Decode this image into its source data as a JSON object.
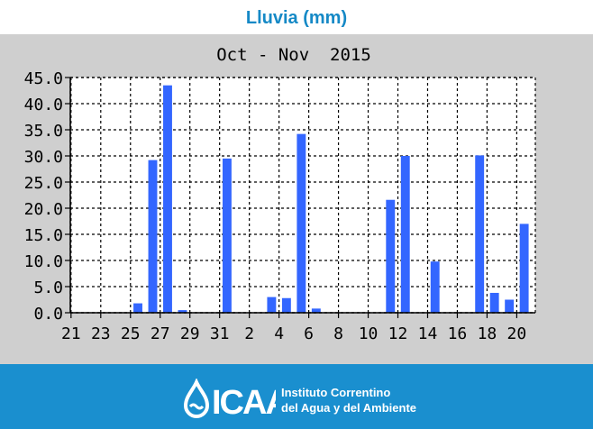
{
  "header": {
    "title": "Lluvia (mm)"
  },
  "chart_data": {
    "type": "bar",
    "title": "Oct - Nov  2015",
    "xlabel": "",
    "ylabel": "",
    "ylim": [
      0,
      45
    ],
    "grid": true,
    "yticks": [
      "0.0",
      "5.0",
      "10.0",
      "15.0",
      "20.0",
      "25.0",
      "30.0",
      "35.0",
      "40.0",
      "45.0"
    ],
    "xticks": [
      "21",
      "23",
      "25",
      "27",
      "29",
      "31",
      "2",
      "4",
      "6",
      "8",
      "10",
      "12",
      "14",
      "16",
      "18",
      "20"
    ],
    "categories": [
      "21",
      "22",
      "23",
      "24",
      "25",
      "26",
      "27",
      "28",
      "29",
      "30",
      "31",
      "1",
      "2",
      "3",
      "4",
      "5",
      "6",
      "7",
      "8",
      "9",
      "10",
      "11",
      "12",
      "13",
      "14",
      "15",
      "16",
      "17",
      "18",
      "19",
      "20"
    ],
    "values": [
      0,
      0,
      0,
      0,
      1.8,
      29.2,
      43.5,
      0.5,
      0,
      0,
      29.5,
      0,
      0,
      3.0,
      2.8,
      34.2,
      0.8,
      0,
      0,
      0,
      0,
      21.6,
      30.0,
      0,
      9.8,
      0,
      0,
      30.1,
      3.8,
      2.5,
      17.0
    ],
    "bar_color": "#3366ff"
  },
  "footer": {
    "org_line1": "Instituto Correntino",
    "org_line2": "del Agua y del Ambiente",
    "logo_text": "ICAA"
  }
}
